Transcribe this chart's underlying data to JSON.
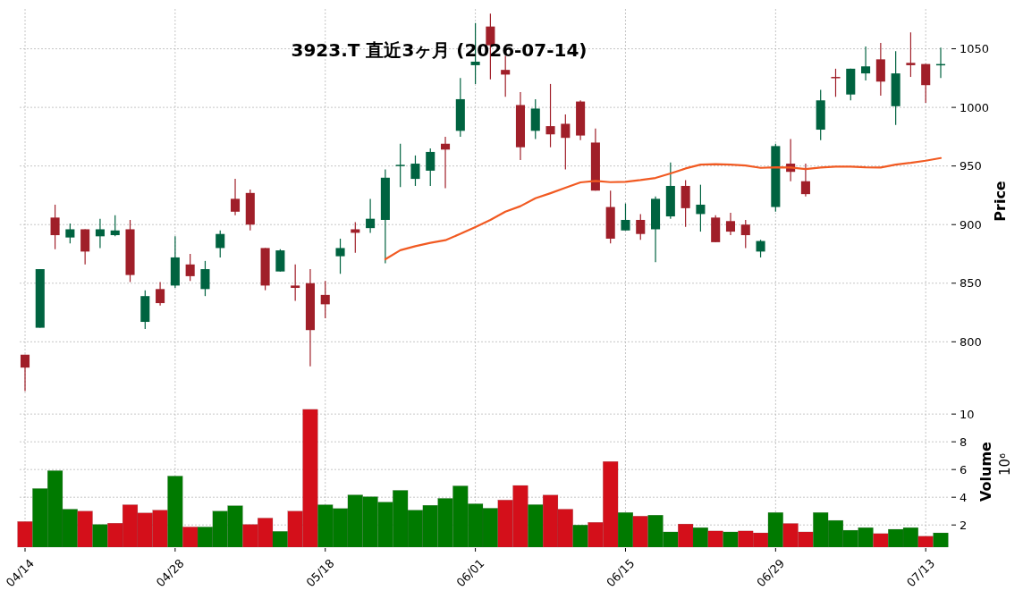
{
  "chart_data": [
    {
      "type": "candlestick",
      "title": "3923.T  直近3ヶ月  (2026-07-14)",
      "ylabel": "Price",
      "categories": [
        null,
        null,
        null,
        null,
        null,
        null,
        null,
        null,
        null,
        null,
        null,
        null,
        null,
        null,
        null,
        null,
        null,
        null,
        null,
        null,
        null,
        null,
        null,
        null,
        null,
        null,
        null,
        null,
        null,
        null,
        null,
        null,
        null,
        null,
        null,
        null,
        null,
        null,
        null,
        null,
        null,
        null,
        null,
        null,
        null,
        null,
        null,
        null,
        null,
        null,
        null,
        null,
        null,
        null,
        null,
        null,
        null,
        null,
        null,
        null,
        null,
        null
      ],
      "ohlc": [
        [
          789,
          789,
          758,
          778
        ],
        [
          812,
          862,
          812,
          862
        ],
        [
          906,
          917,
          879,
          891
        ],
        [
          889,
          901,
          884,
          896
        ],
        [
          896,
          896,
          866,
          877
        ],
        [
          890,
          905,
          880,
          896
        ],
        [
          891,
          908,
          890,
          895
        ],
        [
          896,
          904,
          851,
          857
        ],
        [
          817,
          844,
          811,
          839
        ],
        [
          845,
          851,
          831,
          833
        ],
        [
          848,
          890,
          846,
          872
        ],
        [
          866,
          875,
          852,
          856
        ],
        [
          845,
          869,
          839,
          862
        ],
        [
          880,
          895,
          872,
          892
        ],
        [
          922,
          939,
          908,
          911
        ],
        [
          927,
          930,
          895,
          900
        ],
        [
          880,
          880,
          844,
          848
        ],
        [
          860,
          879,
          860,
          878
        ],
        [
          848,
          866,
          835,
          846
        ],
        [
          850,
          862,
          779,
          810
        ],
        [
          840,
          852,
          820,
          832
        ],
        [
          873,
          888,
          858,
          880
        ],
        [
          896,
          902,
          876,
          893
        ],
        [
          897,
          922,
          893,
          905
        ],
        [
          904,
          947,
          867,
          940
        ],
        [
          950,
          969,
          932,
          951
        ],
        [
          939,
          959,
          933,
          952
        ],
        [
          946,
          965,
          933,
          962
        ],
        [
          969,
          975,
          931,
          964
        ],
        [
          980,
          1025,
          975,
          1007
        ],
        [
          1036,
          1072,
          1020,
          1039
        ],
        [
          1069,
          1080,
          1024,
          1053
        ],
        [
          1032,
          1044,
          1009,
          1028
        ],
        [
          1002,
          1013,
          955,
          966
        ],
        [
          980,
          1007,
          973,
          999
        ],
        [
          984,
          1020,
          966,
          977
        ],
        [
          986,
          994,
          947,
          974
        ],
        [
          1005,
          1006,
          972,
          976
        ],
        [
          970,
          982,
          929,
          929
        ],
        [
          915,
          929,
          884,
          888
        ],
        [
          895,
          918,
          895,
          904
        ],
        [
          904,
          909,
          887,
          892
        ],
        [
          896,
          924,
          868,
          922
        ],
        [
          907,
          953,
          905,
          933
        ],
        [
          933,
          938,
          898,
          914
        ],
        [
          909,
          934,
          894,
          917
        ],
        [
          906,
          908,
          885,
          885
        ],
        [
          903,
          910,
          891,
          894
        ],
        [
          900,
          904,
          880,
          891
        ],
        [
          877,
          887,
          872,
          886
        ],
        [
          915,
          969,
          911,
          967
        ],
        [
          952,
          973,
          937,
          945
        ],
        [
          937,
          952,
          924,
          926
        ],
        [
          981,
          1015,
          972,
          1006
        ],
        [
          1026,
          1033,
          1009,
          1025
        ],
        [
          1011,
          1033,
          1006,
          1033
        ],
        [
          1029,
          1052,
          1023,
          1035
        ],
        [
          1041,
          1055,
          1010,
          1022
        ],
        [
          1001,
          1048,
          985,
          1029
        ],
        [
          1038,
          1064,
          1026,
          1036
        ],
        [
          1037,
          1037,
          1004,
          1019
        ],
        [
          1036,
          1051,
          1025,
          1037
        ]
      ],
      "colors": [
        "#a01f29",
        "#006340",
        "#a01f29",
        "#006340",
        "#a01f29",
        "#006340",
        "#006340",
        "#a01f29",
        "#006340",
        "#a01f29",
        "#006340",
        "#a01f29",
        "#006340",
        "#006340",
        "#a01f29",
        "#a01f29",
        "#a01f29",
        "#006340",
        "#a01f29",
        "#a01f29",
        "#a01f29",
        "#006340",
        "#a01f29",
        "#006340",
        "#006340",
        "#006340",
        "#006340",
        "#006340",
        "#a01f29",
        "#006340",
        "#006340",
        "#a01f29",
        "#a01f29",
        "#a01f29",
        "#006340",
        "#a01f29",
        "#a01f29",
        "#a01f29",
        "#a01f29",
        "#a01f29",
        "#006340",
        "#a01f29",
        "#006340",
        "#006340",
        "#a01f29",
        "#006340",
        "#a01f29",
        "#a01f29",
        "#a01f29",
        "#006340",
        "#006340",
        "#a01f29",
        "#a01f29",
        "#006340",
        "#a01f29",
        "#006340",
        "#006340",
        "#a01f29",
        "#006340",
        "#a01f29",
        "#a01f29",
        "#006340"
      ],
      "series": [
        {
          "type": "line",
          "color": "#f15a22",
          "values": [
            null,
            null,
            null,
            null,
            null,
            null,
            null,
            null,
            null,
            null,
            null,
            null,
            null,
            null,
            null,
            null,
            null,
            null,
            null,
            null,
            null,
            null,
            null,
            null,
            870.4,
            878.1,
            881.6,
            884.4,
            886.7,
            892.1,
            897.9,
            904.0,
            911.1,
            915.7,
            922.5,
            926.8,
            931.4,
            936.0,
            937.3,
            936.2,
            936.5,
            938.0,
            939.8,
            943.6,
            947.9,
            951.2,
            951.5,
            951.2,
            950.4,
            948.4,
            948.9,
            948.7,
            947.4,
            948.7,
            949.4,
            949.4,
            948.9,
            948.7,
            951.2,
            952.7,
            954.5,
            956.8
          ]
        }
      ],
      "ylim": [
        756,
        1084
      ],
      "yticks": [
        800,
        850,
        900,
        950,
        1000,
        1050
      ],
      "grid": true,
      "tick_labels": "y"
    },
    {
      "type": "bar",
      "ylabel": "Volume",
      "annotations": [
        "10⁶"
      ],
      "categories": [
        "04/14",
        null,
        null,
        null,
        null,
        null,
        null,
        null,
        null,
        null,
        "04/28",
        null,
        null,
        null,
        null,
        null,
        null,
        null,
        null,
        null,
        "05/18",
        null,
        null,
        null,
        null,
        null,
        null,
        null,
        null,
        null,
        "06/01",
        null,
        null,
        null,
        null,
        null,
        null,
        null,
        null,
        null,
        "06/15",
        null,
        null,
        null,
        null,
        null,
        null,
        null,
        null,
        null,
        "06/29",
        null,
        null,
        null,
        null,
        null,
        null,
        null,
        null,
        null,
        "07/13",
        null
      ],
      "values": [
        2.25,
        4.63,
        5.92,
        3.14,
        3.0,
        2.04,
        2.13,
        3.46,
        2.87,
        3.07,
        5.53,
        1.86,
        1.86,
        3.0,
        3.39,
        2.04,
        2.5,
        1.54,
        3.0,
        10.34,
        3.46,
        3.19,
        4.17,
        4.04,
        3.65,
        4.5,
        3.07,
        3.42,
        3.92,
        4.82,
        3.53,
        3.21,
        3.8,
        4.85,
        3.47,
        4.16,
        3.14,
        2.0,
        2.19,
        6.58,
        2.9,
        2.64,
        2.71,
        1.5,
        2.07,
        1.81,
        1.57,
        1.5,
        1.57,
        1.43,
        2.9,
        2.11,
        1.5,
        2.9,
        2.33,
        1.62,
        1.81,
        1.38,
        1.69,
        1.81,
        1.19,
        1.43
      ],
      "colors": [
        "#d40f1a",
        "#007a00",
        "#007a00",
        "#007a00",
        "#d40f1a",
        "#007a00",
        "#d40f1a",
        "#d40f1a",
        "#d40f1a",
        "#d40f1a",
        "#007a00",
        "#d40f1a",
        "#007a00",
        "#007a00",
        "#007a00",
        "#d40f1a",
        "#d40f1a",
        "#007a00",
        "#d40f1a",
        "#d40f1a",
        "#007a00",
        "#007a00",
        "#007a00",
        "#007a00",
        "#007a00",
        "#007a00",
        "#007a00",
        "#007a00",
        "#007a00",
        "#007a00",
        "#007a00",
        "#007a00",
        "#d40f1a",
        "#d40f1a",
        "#007a00",
        "#d40f1a",
        "#d40f1a",
        "#007a00",
        "#d40f1a",
        "#d40f1a",
        "#007a00",
        "#d40f1a",
        "#007a00",
        "#007a00",
        "#d40f1a",
        "#007a00",
        "#d40f1a",
        "#007a00",
        "#d40f1a",
        "#d40f1a",
        "#007a00",
        "#d40f1a",
        "#d40f1a",
        "#007a00",
        "#007a00",
        "#007a00",
        "#007a00",
        "#d40f1a",
        "#007a00",
        "#007a00",
        "#d40f1a",
        "#007a00"
      ],
      "ylim": [
        0.4,
        11.3
      ],
      "yticks": [
        2,
        4,
        6,
        8,
        10
      ],
      "grid": true
    }
  ]
}
